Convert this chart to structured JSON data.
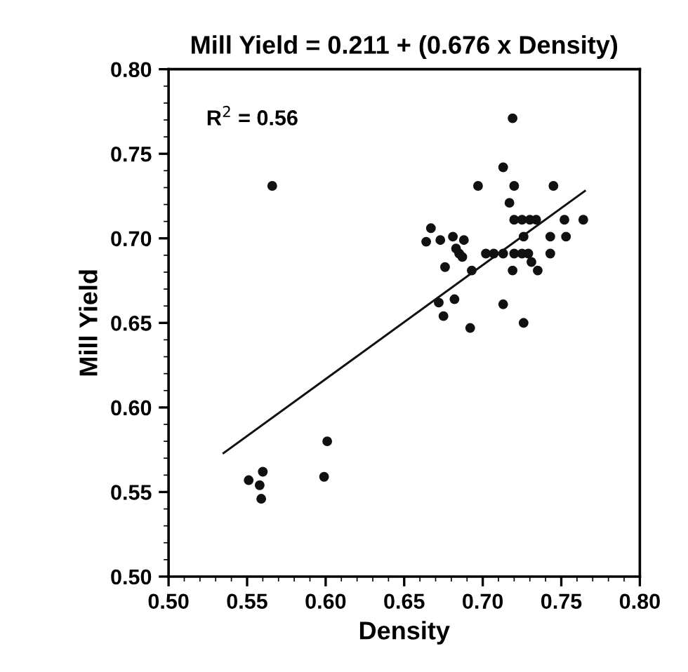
{
  "chart_data": {
    "type": "scatter",
    "title": "Mill Yield = 0.211 + (0.676 x Density)",
    "xlabel": "Density",
    "ylabel": "Mill Yield",
    "annotations": [
      "R$^{2}$ = 0.56"
    ],
    "series": [
      {
        "color": "#111111",
        "marker": "circle",
        "x": [
          0.566,
          0.719,
          0.713,
          0.697,
          0.72,
          0.745,
          0.717,
          0.72,
          0.725,
          0.73,
          0.734,
          0.752,
          0.764,
          0.667,
          0.664,
          0.673,
          0.681,
          0.688,
          0.726,
          0.743,
          0.753,
          0.683,
          0.685,
          0.687,
          0.702,
          0.707,
          0.713,
          0.72,
          0.725,
          0.729,
          0.743,
          0.676,
          0.693,
          0.719,
          0.731,
          0.735,
          0.672,
          0.682,
          0.675,
          0.713,
          0.692,
          0.726,
          0.601,
          0.599,
          0.551,
          0.56,
          0.558,
          0.559
        ],
        "values": [
          0.731,
          0.771,
          0.742,
          0.731,
          0.731,
          0.731,
          0.721,
          0.711,
          0.711,
          0.711,
          0.711,
          0.711,
          0.711,
          0.706,
          0.698,
          0.699,
          0.701,
          0.699,
          0.701,
          0.701,
          0.701,
          0.694,
          0.691,
          0.689,
          0.691,
          0.691,
          0.691,
          0.691,
          0.691,
          0.691,
          0.691,
          0.683,
          0.681,
          0.681,
          0.686,
          0.681,
          0.662,
          0.664,
          0.654,
          0.661,
          0.647,
          0.65,
          0.58,
          0.559,
          0.557,
          0.562,
          0.554,
          0.546
        ]
      },
      {
        "type": "line",
        "color": "#111111",
        "marker": "none",
        "line_style": "solid",
        "x": [
          0.535,
          0.765
        ],
        "values": [
          0.573,
          0.728
        ]
      }
    ],
    "xlim": [
      0.5,
      0.8
    ],
    "ylim": [
      0.5,
      0.8
    ],
    "xticks": [
      {
        "value": 0.5,
        "label": "0.50"
      },
      {
        "value": 0.55,
        "label": "0.55"
      },
      {
        "value": 0.6,
        "label": "0.60"
      },
      {
        "value": 0.65,
        "label": "0.65"
      },
      {
        "value": 0.7,
        "label": "0.70"
      },
      {
        "value": 0.75,
        "label": "0.75"
      },
      {
        "value": 0.8,
        "label": "0.80"
      }
    ],
    "yticks": [
      {
        "value": 0.5,
        "label": "0.50"
      },
      {
        "value": 0.55,
        "label": "0.55"
      },
      {
        "value": 0.6,
        "label": "0.60"
      },
      {
        "value": 0.65,
        "label": "0.65"
      },
      {
        "value": 0.7,
        "label": "0.70"
      },
      {
        "value": 0.75,
        "label": "0.75"
      },
      {
        "value": 0.8,
        "label": "0.80"
      }
    ],
    "grid": false,
    "legend": false
  }
}
